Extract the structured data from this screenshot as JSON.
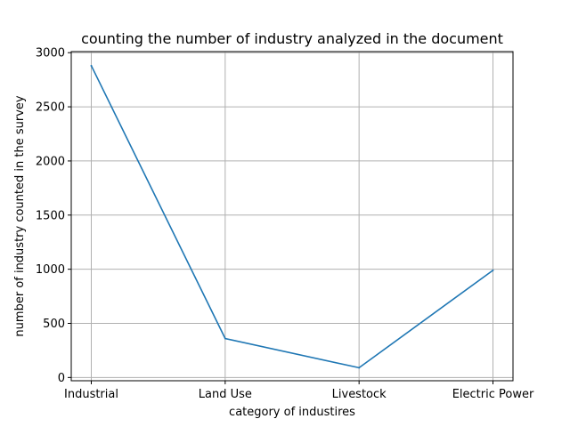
{
  "chart_data": {
    "type": "line",
    "title": "counting the number of industry analyzed in the document",
    "xlabel": "category of industires",
    "ylabel": "number of industry counted in the survey",
    "categories": [
      "Industrial",
      "Land Use",
      "Livestock",
      "Electric Power"
    ],
    "series": [
      {
        "values": [
          2880,
          360,
          90,
          990
        ],
        "color": "#1f77b4"
      }
    ],
    "ylim": [
      -30,
      3010
    ],
    "yticks": [
      0,
      500,
      1000,
      1500,
      2000,
      2500,
      3000
    ],
    "grid": true
  }
}
